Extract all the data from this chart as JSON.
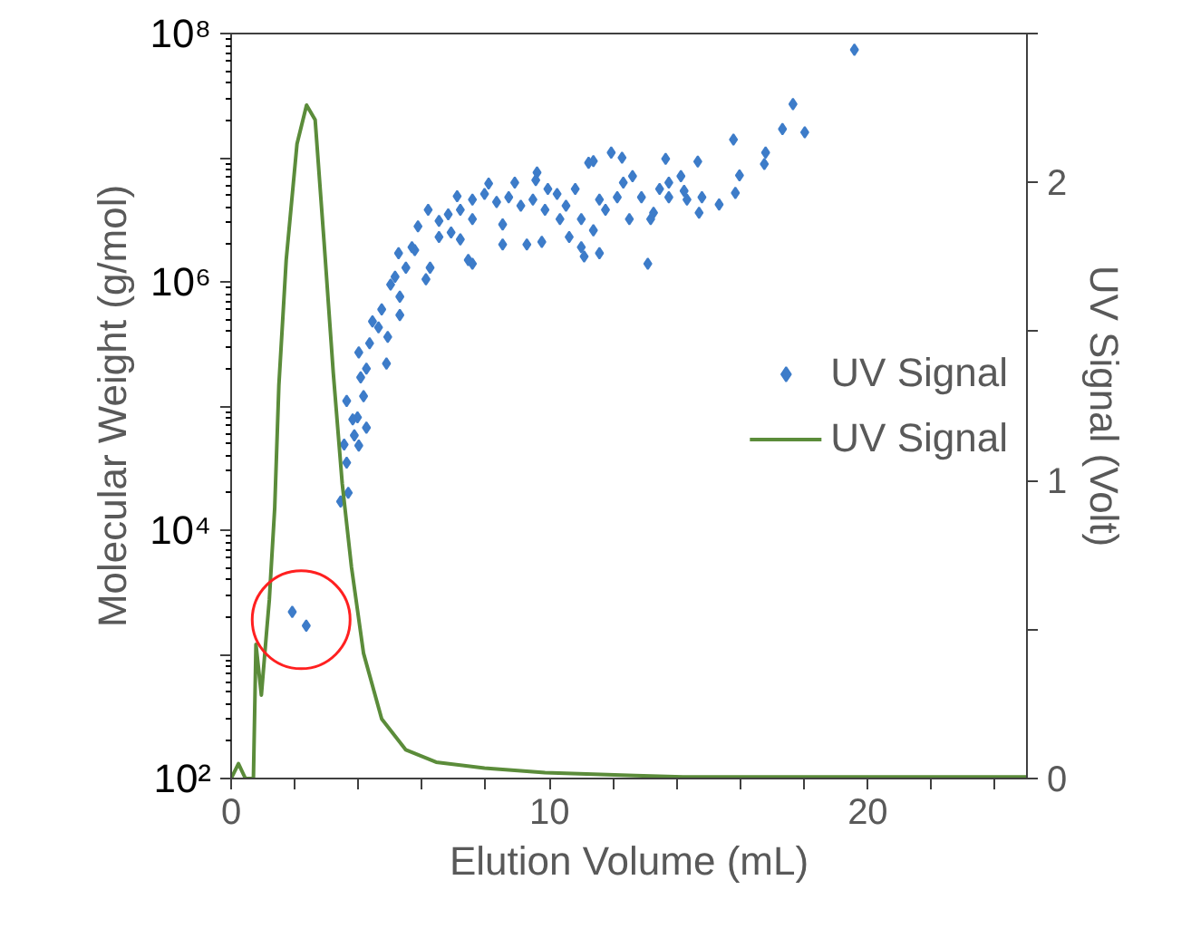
{
  "chart_data": {
    "type": "scatter",
    "xlabel": "Elution Volume (mL)",
    "ylabel": "Molecular Weight (g/mol)",
    "y2label": "UV Signal (Volt)",
    "log": "y",
    "grid": false,
    "legend": "right",
    "xlim": [
      0,
      25
    ],
    "xticks": [
      0,
      {
        "value": 2,
        "label": null
      },
      {
        "value": 4,
        "label": null
      },
      {
        "value": 6,
        "label": null
      },
      {
        "value": 8,
        "label": null
      },
      10,
      {
        "value": 12,
        "label": null
      },
      {
        "value": 14,
        "label": null
      },
      {
        "value": 16,
        "label": null
      },
      {
        "value": 18,
        "label": null
      },
      20,
      {
        "value": 22,
        "label": null
      },
      {
        "value": 24,
        "label": null
      }
    ],
    "ylim": [
      100,
      100000000
    ],
    "yticks": [
      {
        "value": 100,
        "label": "10²"
      },
      {
        "value": 1000,
        "label": null
      },
      {
        "value": 10000,
        "label": "10⁴"
      },
      {
        "value": 100000,
        "label": null
      },
      {
        "value": 1000000,
        "label": "10⁶"
      },
      {
        "value": 10000000,
        "label": null
      },
      {
        "value": 100000000,
        "label": "10⁸"
      }
    ],
    "y2lim": [
      0,
      2.5
    ],
    "y2ticks": [
      0,
      {
        "value": 0.5,
        "label": null
      },
      1,
      {
        "value": 1.5,
        "label": null
      },
      2,
      {
        "value": 2.5,
        "label": null
      }
    ],
    "series": [
      {
        "name": "UV Signal",
        "type": "scatter",
        "marker": "diamond",
        "color": "#3d7cc9",
        "x": [
          19.58,
          17.65,
          17.32,
          18.02,
          15.78,
          16.79,
          16.75,
          15.97,
          15.84,
          15.33,
          14.66,
          13.65,
          11.94,
          11.38,
          12.61,
          13.09,
          11.57,
          11.09,
          11.0,
          9.76,
          9.29,
          8.53,
          7.58,
          7.45,
          8.09,
          8.91,
          9.61,
          7.1,
          6.19,
          5.87,
          5.77,
          6.12,
          6.25,
          5.26,
          5.01,
          5.3,
          4.92,
          4.44,
          4.35,
          4.88,
          4.25,
          4.01,
          4.07,
          4.16,
          3.63,
          3.97,
          3.82,
          4.25,
          3.55,
          4.01,
          3.87,
          3.63,
          3.68,
          3.44,
          1.92,
          2.36,
          6.53,
          6.82,
          7.2,
          7.58,
          7.96,
          8.34,
          8.72,
          9.1,
          9.48,
          9.86,
          10.24,
          10.52,
          10.81,
          11.0,
          11.38,
          11.76,
          12.13,
          12.32,
          12.51,
          13.27,
          13.46,
          13.75,
          14.23,
          14.32,
          14.7,
          14.79,
          14.13,
          13.18,
          9.95,
          9.57,
          11.23,
          12.28,
          13.75,
          7.58,
          6.91,
          6.53,
          5.68,
          5.49,
          5.15,
          4.73,
          4.63,
          5.3,
          11.57,
          12.89,
          10.33,
          10.62,
          8.53,
          7.2
        ],
        "values": [
          74000000,
          27000000,
          17000000,
          16000000,
          14000000,
          11000000,
          8900000,
          7200000,
          5200000,
          4200000,
          9300000,
          9800000,
          11000000,
          9400000,
          7100000,
          1400000,
          1700000,
          1600000,
          1900000,
          2100000,
          2000000,
          2000000,
          1400000,
          1500000,
          6200000,
          6300000,
          7600000,
          4900000,
          3800000,
          2800000,
          1800000,
          1050000,
          1300000,
          1700000,
          950000,
          540000,
          360000,
          480000,
          320000,
          220000,
          200000,
          270000,
          170000,
          120000,
          110000,
          81000,
          78000,
          67000,
          49000,
          48000,
          58000,
          35000,
          20000,
          17000,
          2200,
          1700,
          3100000,
          3500000,
          3800000,
          4600000,
          5100000,
          4400000,
          4800000,
          4100000,
          4600000,
          3800000,
          5100000,
          4100000,
          5600000,
          3200000,
          2600000,
          3800000,
          4800000,
          6300000,
          3200000,
          3600000,
          5600000,
          4800000,
          5400000,
          4600000,
          3600000,
          4800000,
          7100000,
          3200000,
          5600000,
          6600000,
          9100000,
          10000000,
          6300000,
          3200000,
          2500000,
          2300000,
          1900000,
          1300000,
          1100000,
          600000,
          430000,
          760000,
          4600000,
          4800000,
          3200000,
          2300000,
          2900000,
          2200000
        ]
      },
      {
        "name": "UV Signal",
        "type": "line",
        "axis": "y2",
        "color": "#5b8c3a",
        "x": [
          0,
          0.23,
          0.45,
          0.7,
          0.78,
          0.95,
          1.12,
          1.2,
          1.37,
          1.5,
          1.73,
          2.07,
          2.37,
          2.64,
          2.92,
          3.21,
          3.49,
          3.78,
          4.16,
          4.73,
          5.49,
          6.44,
          7.96,
          9.86,
          12.7,
          14.2,
          20,
          25
        ],
        "values": [
          0,
          0.05,
          0,
          0,
          0.45,
          0.28,
          0.5,
          0.6,
          0.91,
          1.32,
          1.74,
          2.13,
          2.26,
          2.21,
          1.8,
          1.36,
          0.99,
          0.71,
          0.42,
          0.2,
          0.096,
          0.055,
          0.035,
          0.02,
          0.01,
          0.005,
          0.005,
          0.005
        ]
      }
    ]
  }
}
